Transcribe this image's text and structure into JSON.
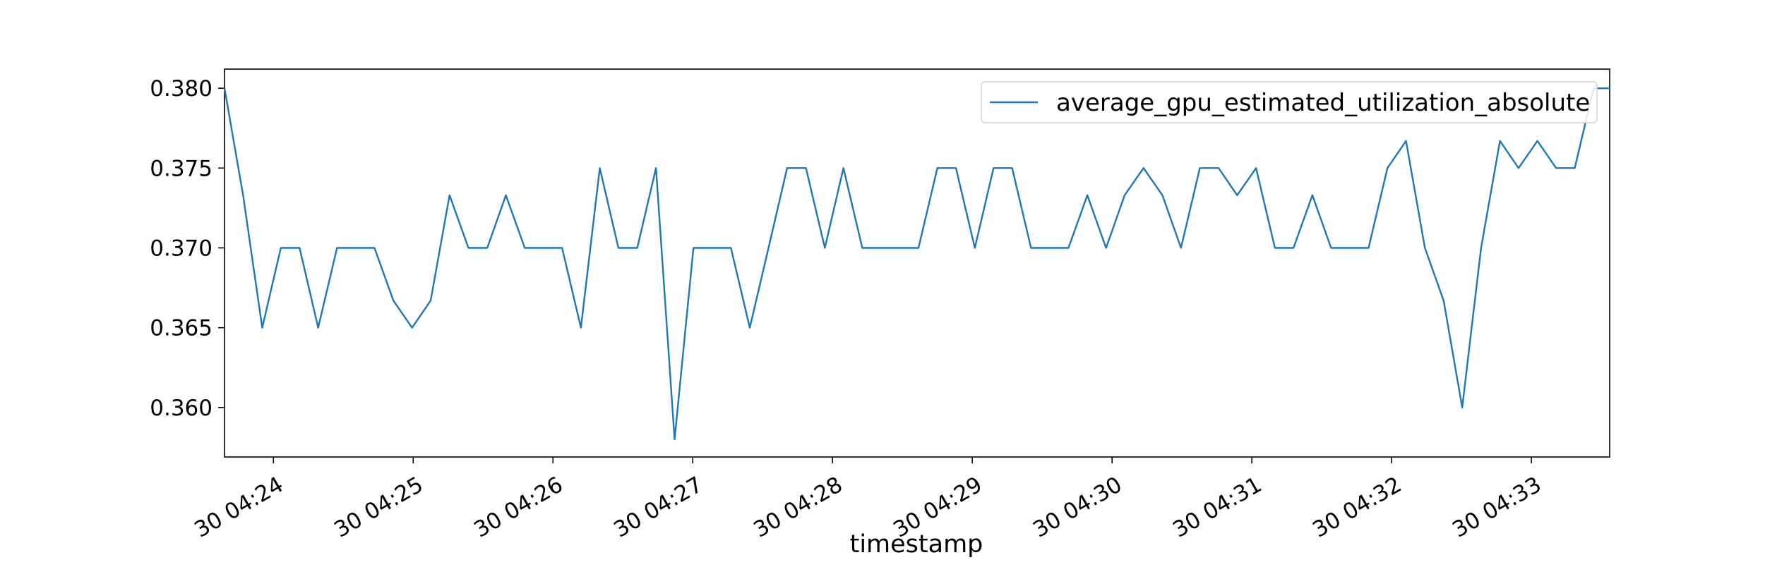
{
  "chart_data": {
    "type": "line",
    "title": "",
    "xlabel": "timestamp",
    "ylabel": "",
    "x_tick_labels": [
      "30 04:24",
      "30 04:25",
      "30 04:26",
      "30 04:27",
      "30 04:28",
      "30 04:29",
      "30 04:30",
      "30 04:31",
      "30 04:32",
      "30 04:33"
    ],
    "y_tick_labels": [
      "0.360",
      "0.365",
      "0.370",
      "0.375",
      "0.380"
    ],
    "y_ticks": [
      0.36,
      0.365,
      0.37,
      0.375,
      0.38
    ],
    "ylim": [
      0.3569,
      0.3812
    ],
    "xlim_minutes": [
      23.65,
      33.56
    ],
    "grid": false,
    "legend_position": "top-right",
    "series": [
      {
        "name": "average_gpu_estimated_utilization_absolute",
        "color": "#1f77b4",
        "x_minutes": [
          23.65,
          23.783,
          23.92,
          24.053,
          24.187,
          24.32,
          24.455,
          24.59,
          24.723,
          24.858,
          24.992,
          25.125,
          25.26,
          25.395,
          25.53,
          25.663,
          25.798,
          25.932,
          26.065,
          26.2,
          26.335,
          26.468,
          26.603,
          26.737,
          26.87,
          27.005,
          27.14,
          27.273,
          27.408,
          27.542,
          27.675,
          27.81,
          27.945,
          28.078,
          28.213,
          28.347,
          28.48,
          28.615,
          28.75,
          28.883,
          29.018,
          29.152,
          29.285,
          29.42,
          29.555,
          29.688,
          29.823,
          29.957,
          30.09,
          30.225,
          30.36,
          30.493,
          30.628,
          30.762,
          30.895,
          31.03,
          31.165,
          31.298,
          31.433,
          31.567,
          31.7,
          31.835,
          31.97,
          32.103,
          32.238,
          32.372,
          32.505,
          32.64,
          32.775,
          32.908,
          33.043,
          33.177,
          33.31,
          33.445,
          33.56
        ],
        "values": [
          0.38,
          0.3733,
          0.365,
          0.37,
          0.37,
          0.365,
          0.37,
          0.37,
          0.37,
          0.3667,
          0.365,
          0.3667,
          0.3733,
          0.37,
          0.37,
          0.3733,
          0.37,
          0.37,
          0.37,
          0.365,
          0.375,
          0.37,
          0.37,
          0.375,
          0.358,
          0.37,
          0.37,
          0.37,
          0.365,
          0.37,
          0.375,
          0.375,
          0.37,
          0.375,
          0.37,
          0.37,
          0.37,
          0.37,
          0.375,
          0.375,
          0.37,
          0.375,
          0.375,
          0.37,
          0.37,
          0.37,
          0.3733,
          0.37,
          0.3733,
          0.375,
          0.3733,
          0.37,
          0.375,
          0.375,
          0.3733,
          0.375,
          0.37,
          0.37,
          0.3733,
          0.37,
          0.37,
          0.37,
          0.375,
          0.3767,
          0.37,
          0.3667,
          0.36,
          0.37,
          0.3767,
          0.375,
          0.3767,
          0.375,
          0.375,
          0.38,
          0.38
        ]
      }
    ]
  }
}
